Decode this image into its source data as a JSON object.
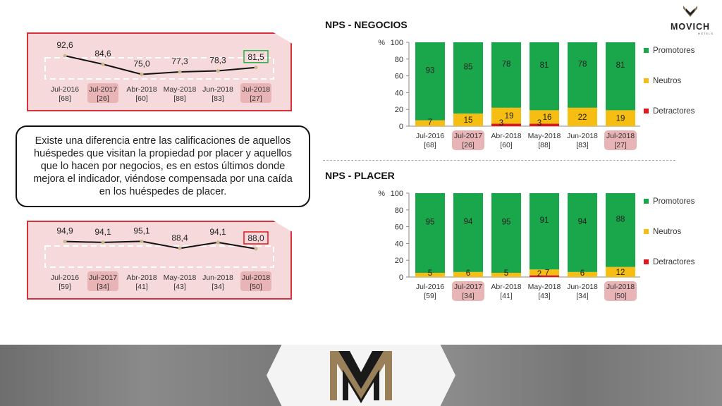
{
  "logo": {
    "name": "MOVICH",
    "sub": "HOTELS"
  },
  "note": {
    "text": "Existe una diferencia entre las calificaciones de aquellos huéspedes que visitan la propiedad por placer y aquellos que lo hacen por negocios, es en estos últimos donde mejora el indicador, viéndose compensada por una caída en los huéspedes de placer."
  },
  "legend": {
    "promotores": "Promotores",
    "neutros": "Neutros",
    "detractores": "Detractores"
  },
  "colors": {
    "promotores": "#1aa64a",
    "neutros": "#f6bd12",
    "detractores": "#e0181e",
    "line": "#111111",
    "highlight_fill": "#e8b4b6",
    "panel_border": "#d6303a"
  },
  "chart_data": [
    {
      "type": "line",
      "id": "negocios-line",
      "categories": [
        "Jul-2016",
        "Jul-2017",
        "Abr-2018",
        "May-2018",
        "Jun-2018",
        "Jul-2018"
      ],
      "counts": [
        "[68]",
        "[26]",
        "[60]",
        "[88]",
        "[83]",
        "[27]"
      ],
      "highlighted": [
        false,
        true,
        false,
        false,
        false,
        true
      ],
      "values": [
        92.6,
        84.6,
        75.0,
        77.3,
        78.3,
        81.5
      ],
      "value_labels": [
        "92,6",
        "84,6",
        "75,0",
        "77,3",
        "78,3",
        "81,5"
      ],
      "boxed_index": 5,
      "box_color": "#2db34a"
    },
    {
      "type": "line",
      "id": "placer-line",
      "categories": [
        "Jul-2016",
        "Jul-2017",
        "Abr-2018",
        "May-2018",
        "Jun-2018",
        "Jul-2018"
      ],
      "counts": [
        "[59]",
        "[34]",
        "[41]",
        "[43]",
        "[34]",
        "[50]"
      ],
      "highlighted": [
        false,
        true,
        false,
        false,
        false,
        true
      ],
      "values": [
        94.9,
        94.1,
        95.1,
        88.4,
        94.1,
        88.0
      ],
      "value_labels": [
        "94,9",
        "94,1",
        "95,1",
        "88,4",
        "94,1",
        "88,0"
      ],
      "boxed_index": 5,
      "box_color": "#e0181e"
    },
    {
      "type": "bar",
      "stacked": true,
      "title": "NPS - NEGOCIOS",
      "ylabel": "%",
      "ylim": [
        0,
        100
      ],
      "yticks": [
        0,
        20,
        40,
        60,
        80,
        100
      ],
      "categories": [
        "Jul-2016",
        "Jul-2017",
        "Abr-2018",
        "May-2018",
        "Jun-2018",
        "Jul-2018"
      ],
      "counts": [
        "[68]",
        "[26]",
        "[60]",
        "[88]",
        "[83]",
        "[27]"
      ],
      "highlighted": [
        false,
        true,
        false,
        false,
        false,
        true
      ],
      "series": [
        {
          "name": "Detractores",
          "values": [
            0,
            0,
            3,
            3,
            0,
            0
          ],
          "labels": [
            "",
            "",
            "3",
            "3",
            "",
            ""
          ]
        },
        {
          "name": "Neutros",
          "values": [
            7,
            15,
            19,
            16,
            22,
            19
          ],
          "labels": [
            "7",
            "15",
            "19",
            "16",
            "22",
            "19"
          ]
        },
        {
          "name": "Promotores",
          "values": [
            93,
            85,
            78,
            81,
            78,
            81
          ],
          "labels": [
            "93",
            "85",
            "78",
            "81",
            "78",
            "81"
          ]
        }
      ]
    },
    {
      "type": "bar",
      "stacked": true,
      "title": "NPS - PLACER",
      "ylabel": "%",
      "ylim": [
        0,
        100
      ],
      "yticks": [
        0,
        20,
        40,
        60,
        80,
        100
      ],
      "categories": [
        "Jul-2016",
        "Jul-2017",
        "Abr-2018",
        "May-2018",
        "Jun-2018",
        "Jul-2018"
      ],
      "counts": [
        "[59]",
        "[34]",
        "[41]",
        "[43]",
        "[34]",
        "[50]"
      ],
      "highlighted": [
        false,
        true,
        false,
        false,
        false,
        true
      ],
      "series": [
        {
          "name": "Detractores",
          "values": [
            0,
            0,
            0,
            2,
            0,
            0
          ],
          "labels": [
            "",
            "",
            "",
            "2",
            "",
            ""
          ]
        },
        {
          "name": "Neutros",
          "values": [
            5,
            6,
            5,
            7,
            6,
            12
          ],
          "labels": [
            "5",
            "6",
            "5",
            "7",
            "6",
            "12"
          ]
        },
        {
          "name": "Promotores",
          "values": [
            95,
            94,
            95,
            91,
            94,
            88
          ],
          "labels": [
            "95",
            "94",
            "95",
            "91",
            "94",
            "88"
          ]
        }
      ]
    }
  ]
}
